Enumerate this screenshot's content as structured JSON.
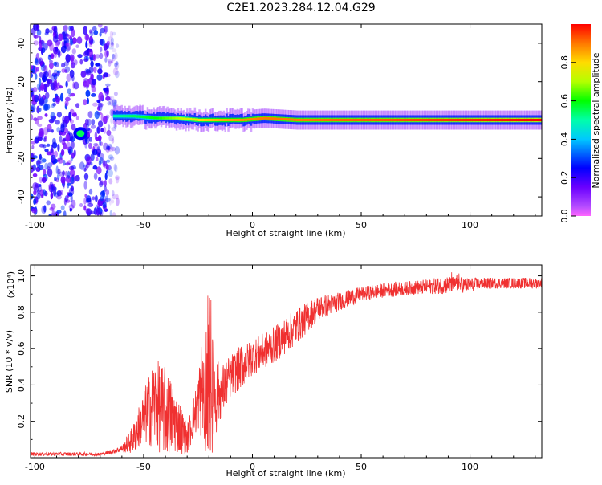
{
  "figure_title": "C2E1.2023.284.12.04.G29",
  "chart_data": [
    {
      "type": "heatmap",
      "title": "",
      "xlabel": "Height of straight line (km)",
      "ylabel": "Frequency (Hz)",
      "xlim": [
        -102,
        133
      ],
      "ylim": [
        -50,
        50
      ],
      "xticks": [
        -100,
        -50,
        0,
        50,
        100
      ],
      "yticks": [
        -40,
        -20,
        0,
        20,
        40
      ],
      "colorbar": {
        "label": "Normalized spectral amplitude",
        "range": [
          0,
          1
        ],
        "ticks": [
          0.0,
          0.2,
          0.4,
          0.6,
          0.8
        ],
        "colormap": "rainbow (violet to red)"
      },
      "ridge": {
        "description": "dominant spectral line near 0 Hz",
        "x": [
          -64,
          -55,
          -45,
          -35,
          -25,
          -15,
          -5,
          5,
          20,
          40,
          60,
          80,
          100,
          133
        ],
        "frequency": [
          2,
          2,
          1,
          1,
          0,
          0,
          0,
          1,
          0,
          0,
          0,
          0,
          0,
          0
        ],
        "amplitude": [
          0.5,
          0.55,
          0.6,
          0.7,
          0.8,
          0.85,
          0.88,
          0.9,
          0.9,
          0.92,
          0.93,
          0.95,
          0.97,
          1.0
        ]
      },
      "spot": {
        "x": -79,
        "frequency": -7,
        "amplitude": 0.55
      },
      "noise_region": {
        "x_range": [
          -102,
          -62
        ],
        "frequency_range": [
          -50,
          50
        ],
        "amplitude_range": [
          0.1,
          0.3
        ]
      }
    },
    {
      "type": "line",
      "title": "",
      "xlabel": "Height of straight line (km)",
      "ylabel": "SNR (10 * v/v)",
      "y_multiplier": "(x10⁴)",
      "xlim": [
        -102,
        133
      ],
      "ylim": [
        0,
        1.06
      ],
      "xticks": [
        -100,
        -50,
        0,
        50,
        100
      ],
      "yticks": [
        0.2,
        0.4,
        0.6,
        0.8,
        1.0
      ],
      "color": "#f03030",
      "series": [
        {
          "x": [
            -102,
            -90,
            -80,
            -70,
            -65,
            -60,
            -55,
            -50,
            -45,
            -40,
            -35,
            -30,
            -25,
            -22,
            -20,
            -15,
            -10,
            -5,
            0,
            10,
            20,
            30,
            40,
            50,
            60,
            70,
            80,
            90,
            100,
            110,
            120,
            133
          ],
          "values": [
            0.02,
            0.02,
            0.02,
            0.02,
            0.03,
            0.05,
            0.1,
            0.22,
            0.3,
            0.25,
            0.2,
            0.1,
            0.3,
            0.45,
            0.35,
            0.35,
            0.45,
            0.5,
            0.55,
            0.62,
            0.72,
            0.82,
            0.86,
            0.9,
            0.92,
            0.93,
            0.94,
            0.95,
            0.95,
            0.96,
            0.96,
            0.96
          ],
          "noise": [
            0.01,
            0.01,
            0.01,
            0.01,
            0.01,
            0.02,
            0.08,
            0.15,
            0.25,
            0.25,
            0.18,
            0.08,
            0.15,
            0.4,
            0.4,
            0.15,
            0.12,
            0.12,
            0.1,
            0.1,
            0.1,
            0.07,
            0.05,
            0.04,
            0.04,
            0.04,
            0.04,
            0.05,
            0.04,
            0.03,
            0.03,
            0.03
          ]
        }
      ]
    }
  ]
}
